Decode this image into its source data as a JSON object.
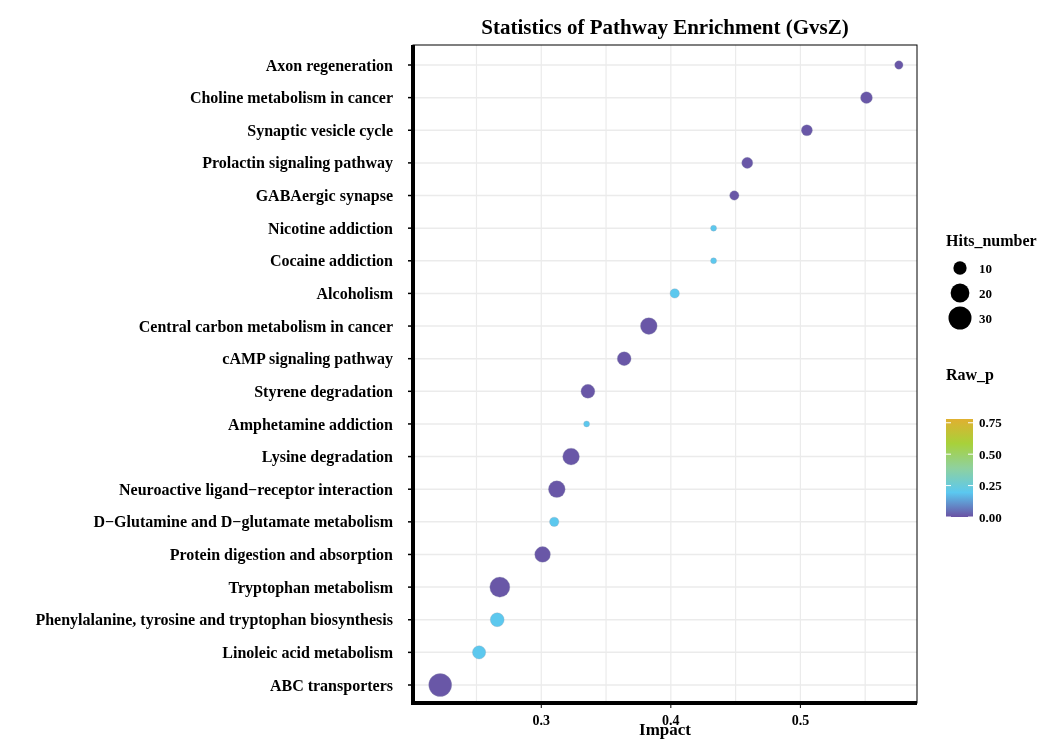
{
  "chart_data": {
    "type": "bubble",
    "title": "Statistics of Pathway Enrichment (GvsZ)",
    "xlabel": "Impact",
    "legend_title": "Hits_number",
    "clabel": "Raw_p",
    "categories": [
      "Axon regeneration",
      "Choline metabolism in cancer",
      "Synaptic vesicle cycle",
      "Prolactin signaling pathway",
      "GABAergic synapse",
      "Nicotine addiction",
      "Cocaine addiction",
      "Alcoholism",
      "Central carbon metabolism in cancer",
      "cAMP signaling pathway",
      "Styrene degradation",
      "Amphetamine addiction",
      "Lysine degradation",
      "Neuroactive ligand−receptor interaction",
      "D−Glutamine and D−glutamate metabolism",
      "Protein digestion and absorption",
      "Tryptophan metabolism",
      "Phenylalanine, tyrosine and tryptophan biosynthesis",
      "Linoleic acid metabolism",
      "ABC transporters"
    ],
    "orientation": "horizontal",
    "values": [
      0.576,
      0.551,
      0.505,
      0.459,
      0.449,
      0.433,
      0.433,
      0.403,
      0.383,
      0.364,
      0.336,
      0.335,
      0.323,
      0.312,
      0.31,
      0.301,
      0.268,
      0.266,
      0.252,
      0.222
    ],
    "sizes": [
      4,
      8,
      7,
      7,
      5,
      2,
      2,
      5,
      16,
      11,
      11,
      2,
      16,
      16,
      5,
      14,
      23,
      11,
      10,
      30
    ],
    "cvalues": [
      0.01,
      0.01,
      0.01,
      0.01,
      0.01,
      0.2,
      0.2,
      0.2,
      0.01,
      0.01,
      0.01,
      0.2,
      0.01,
      0.01,
      0.2,
      0.01,
      0.01,
      0.2,
      0.2,
      0.01
    ],
    "size_legend": [
      10,
      20,
      30
    ],
    "clim": [
      0,
      0.78
    ],
    "cticks": [
      {
        "value": 0,
        "label": "0.00"
      },
      {
        "value": 0.25,
        "label": "0.25"
      },
      {
        "value": 0.5,
        "label": "0.50"
      },
      {
        "value": 0.75,
        "label": "0.75"
      }
    ],
    "xlim": [
      0.201,
      0.59
    ],
    "xticks": [
      0.3,
      0.4,
      0.5
    ],
    "grid": true
  }
}
